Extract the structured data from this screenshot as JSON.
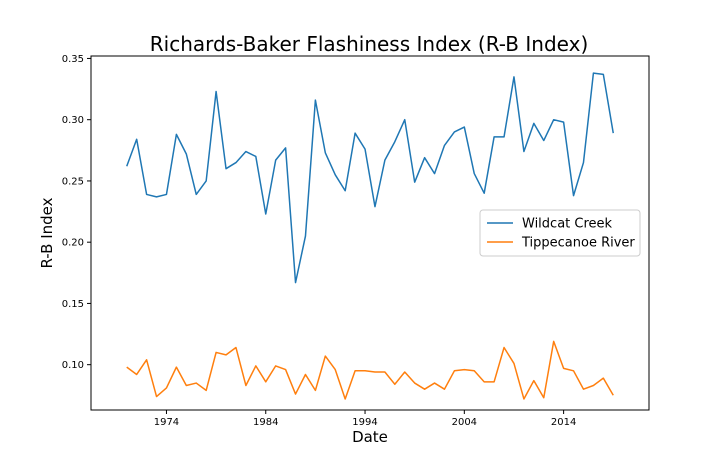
{
  "chart_data": {
    "type": "line",
    "title": "Richards-Baker Flashiness Index (R-B Index)",
    "xlabel": "Date",
    "ylabel": "R-B Index",
    "x": [
      1970,
      1971,
      1972,
      1973,
      1974,
      1975,
      1976,
      1977,
      1978,
      1979,
      1980,
      1981,
      1982,
      1983,
      1984,
      1985,
      1986,
      1987,
      1988,
      1989,
      1990,
      1991,
      1992,
      1993,
      1994,
      1995,
      1996,
      1997,
      1998,
      1999,
      2000,
      2001,
      2002,
      2003,
      2004,
      2005,
      2006,
      2007,
      2008,
      2009,
      2010,
      2011,
      2012,
      2013,
      2014,
      2015,
      2016,
      2017,
      2018,
      2019,
      2020
    ],
    "xlim": [
      1966.4,
      2022.6
    ],
    "ylim": [
      0.063,
      0.352
    ],
    "xticks": [
      1974,
      1984,
      1994,
      2004,
      2014
    ],
    "yticks": [
      0.1,
      0.15,
      0.2,
      0.25,
      0.3,
      0.35
    ],
    "ytick_labels": [
      "0.10",
      "0.15",
      "0.20",
      "0.25",
      "0.30",
      "0.35"
    ],
    "grid": false,
    "legend_position": "center-right",
    "series": [
      {
        "name": "Wildcat Creek",
        "color": "#1f77b4",
        "values": [
          0.262,
          0.284,
          0.239,
          0.237,
          0.239,
          0.288,
          0.272,
          0.239,
          0.25,
          0.323,
          0.26,
          0.265,
          0.274,
          0.27,
          0.223,
          0.267,
          0.277,
          0.167,
          0.205,
          0.316,
          0.273,
          0.255,
          0.242,
          0.289,
          0.276,
          0.229,
          0.267,
          0.282,
          0.3,
          0.249,
          0.269,
          0.256,
          0.279,
          0.29,
          0.294,
          0.256,
          0.24,
          0.286,
          0.286,
          0.335,
          0.274,
          0.297,
          0.283,
          0.3,
          0.298,
          0.238,
          0.265,
          0.338,
          0.337,
          0.289,
          null
        ]
      },
      {
        "name": "Tippecanoe River",
        "color": "#ff7f0e",
        "values": [
          0.098,
          0.092,
          0.104,
          0.074,
          0.081,
          0.098,
          0.083,
          0.085,
          0.079,
          0.11,
          0.108,
          0.114,
          0.083,
          0.099,
          0.086,
          0.099,
          0.096,
          0.076,
          0.092,
          0.079,
          0.107,
          0.096,
          0.072,
          0.095,
          0.095,
          0.094,
          0.094,
          0.084,
          0.094,
          0.085,
          0.08,
          0.085,
          0.08,
          0.095,
          0.096,
          0.095,
          0.086,
          0.086,
          0.114,
          0.101,
          0.072,
          0.087,
          0.073,
          0.119,
          0.097,
          0.095,
          0.08,
          0.083,
          0.089,
          0.075,
          null
        ]
      }
    ]
  }
}
